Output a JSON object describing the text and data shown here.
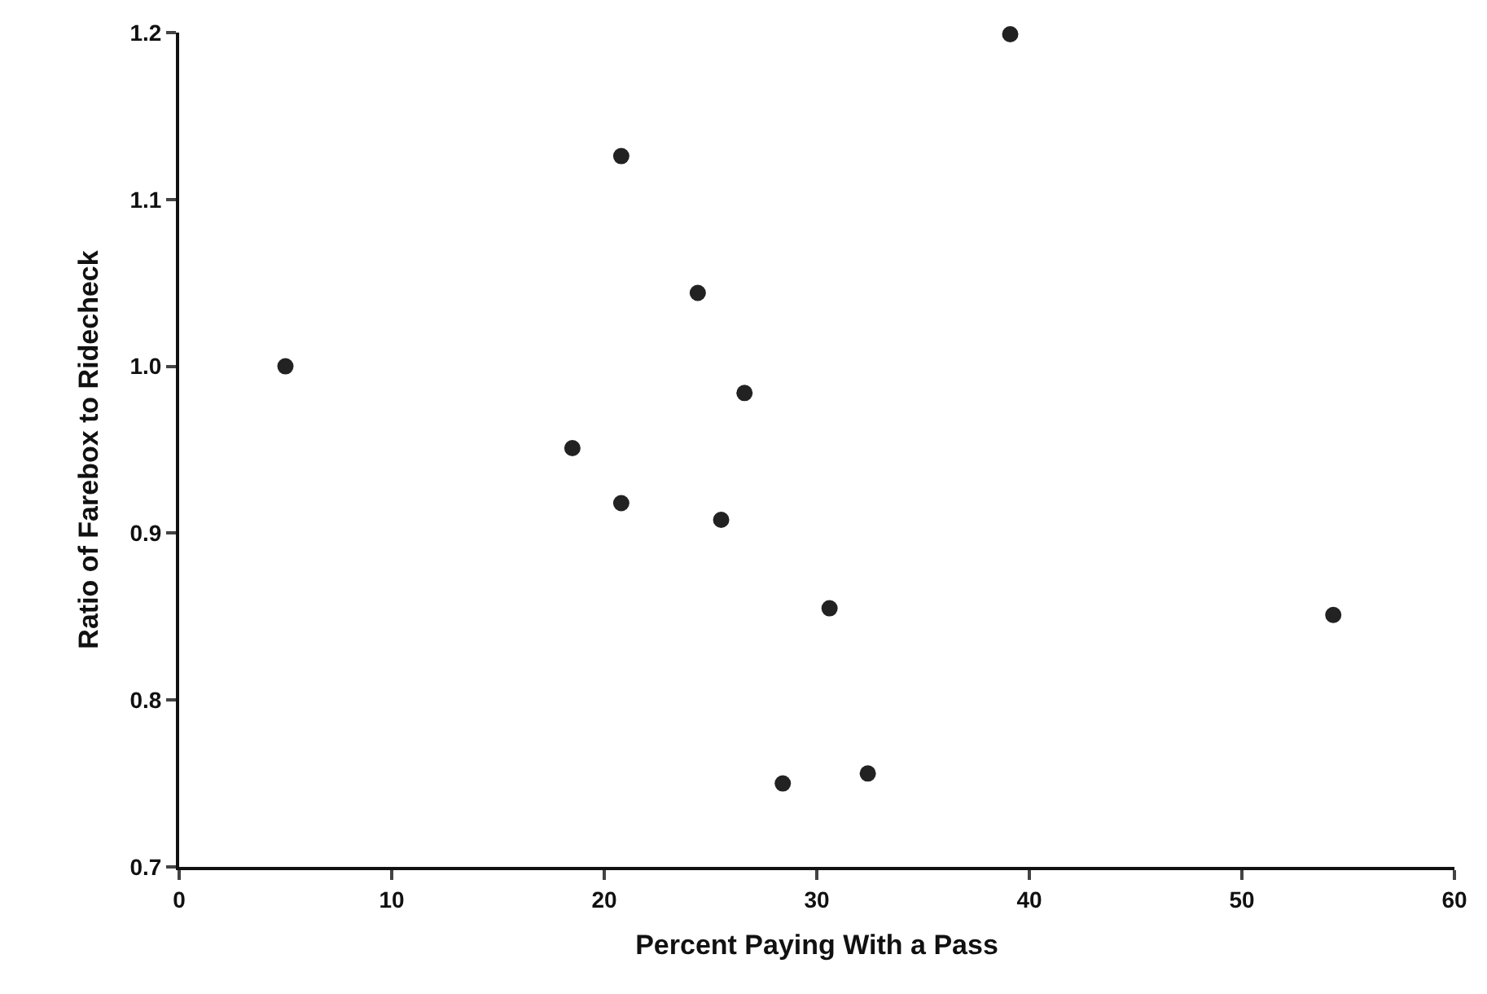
{
  "chart_data": {
    "type": "scatter",
    "xlabel": "Percent Paying With a Pass",
    "ylabel": "Ratio of Farebox to Ridecheck",
    "x": [
      5.0,
      18.5,
      20.8,
      20.8,
      24.4,
      26.6,
      25.5,
      30.6,
      28.4,
      32.4,
      39.1,
      54.3
    ],
    "values": [
      1.0,
      0.951,
      1.126,
      0.918,
      1.044,
      0.984,
      0.908,
      0.855,
      0.75,
      0.756,
      1.199,
      0.851
    ],
    "color": "#222222",
    "marker": "circle",
    "xlim": [
      0,
      60
    ],
    "xticks": [
      0,
      10,
      20,
      30,
      40,
      50,
      60
    ],
    "ylim": [
      0.7,
      1.2
    ],
    "yticks": [
      {
        "value": 0.7,
        "label": "0.7"
      },
      {
        "value": 0.8,
        "label": "0.8"
      },
      {
        "value": 0.9,
        "label": "0.9"
      },
      {
        "value": 1.0,
        "label": "1.0"
      },
      {
        "value": 1.1,
        "label": "1.1"
      },
      {
        "value": 1.2,
        "label": "1.2"
      }
    ]
  }
}
